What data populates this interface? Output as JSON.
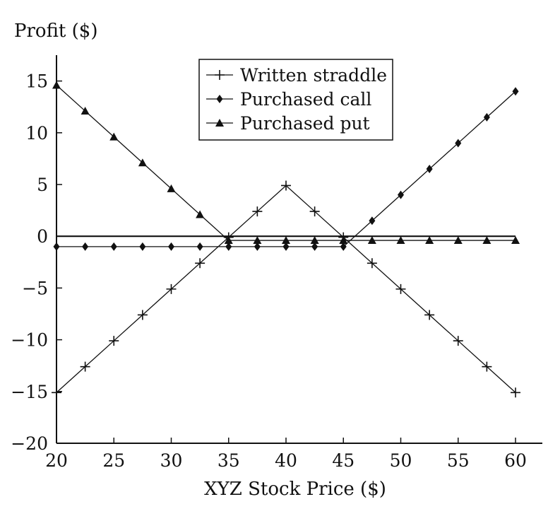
{
  "chart_data": {
    "type": "line",
    "title": "",
    "xlabel": "XYZ Stock Price ($)",
    "ylabel": "Profit ($)",
    "xlim": [
      20,
      60
    ],
    "ylim": [
      -20,
      17.5
    ],
    "xticks": [
      20,
      25,
      30,
      35,
      40,
      45,
      50,
      55,
      60
    ],
    "xtick_labels": [
      "20",
      "25",
      "30",
      "35",
      "40",
      "45",
      "50",
      "55",
      "60"
    ],
    "yticks": [
      15,
      10,
      5,
      0,
      -5,
      -10,
      -15,
      -20
    ],
    "ytick_labels": [
      "15",
      "10",
      "5",
      "0",
      "−5",
      "−10",
      "−15",
      "−20"
    ],
    "grid": false,
    "legend_position": "top-center",
    "x": [
      20,
      22.5,
      25,
      27.5,
      30,
      32.5,
      35,
      37.5,
      40,
      42.5,
      45,
      47.5,
      50,
      52.5,
      55,
      57.5,
      60
    ],
    "series": [
      {
        "name": "Written straddle",
        "marker": "plus",
        "values": [
          -15.1,
          -12.6,
          -10.1,
          -7.6,
          -5.1,
          -2.6,
          -0.1,
          2.4,
          4.9,
          2.4,
          -0.1,
          -2.6,
          -5.1,
          -7.6,
          -10.1,
          -12.6,
          -15.1
        ]
      },
      {
        "name": "Purchased call",
        "marker": "diamond",
        "values": [
          -1.0,
          -1.0,
          -1.0,
          -1.0,
          -1.0,
          -1.0,
          -1.0,
          -1.0,
          -1.0,
          -1.0,
          -1.0,
          1.5,
          4.0,
          6.5,
          9.0,
          11.5,
          14.0
        ]
      },
      {
        "name": "Purchased put",
        "marker": "triangle",
        "values": [
          14.6,
          12.1,
          9.6,
          7.1,
          4.6,
          2.1,
          -0.4,
          -0.4,
          -0.4,
          -0.4,
          -0.4,
          -0.4,
          -0.4,
          -0.4,
          -0.4,
          -0.4,
          -0.4
        ]
      }
    ],
    "zero_line": true
  }
}
